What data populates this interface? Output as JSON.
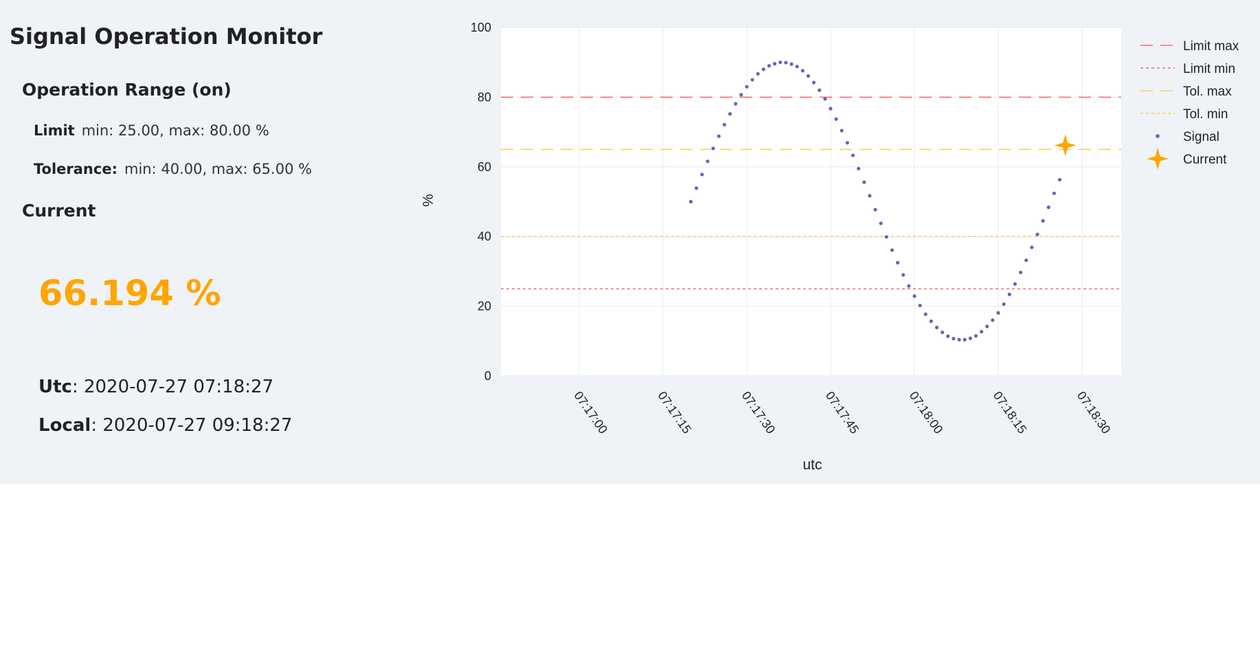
{
  "title": "Signal Operation Monitor",
  "range": {
    "heading": "Operation Range (on)",
    "limit_label": "Limit",
    "limit_text": "min: 25.00, max: 80.00 %",
    "tolerance_label": "Tolerance:",
    "tolerance_text": "min: 40.00, max: 65.00 %"
  },
  "current": {
    "heading": "Current",
    "value": "66.194 %",
    "utc_label": "Utc",
    "utc_value": ": 2020-07-27 07:18:27",
    "local_label": "Local",
    "local_value": ": 2020-07-27 09:18:27"
  },
  "colors": {
    "panel_bg": "#eff2f6",
    "current": "#ffa500",
    "signal": "#6a63b0",
    "limit": "#ff6b6b",
    "tolerance": "#ffcb5c"
  },
  "chart_data": {
    "type": "scatter",
    "xlabel": "utc",
    "ylabel": "%",
    "ylim": [
      0,
      100
    ],
    "yticks": [
      "0",
      "20",
      "40",
      "60",
      "80",
      "100"
    ],
    "xticks": [
      "07:17:00",
      "07:17:15",
      "07:17:30",
      "07:17:45",
      "07:18:00",
      "07:18:15",
      "07:18:30"
    ],
    "xlim": [
      "07:16:46",
      "07:18:37"
    ],
    "grid": true,
    "legend_position": "right",
    "hlines": [
      {
        "name": "Limit max",
        "value": 80,
        "style": "dash",
        "color": "#ff6b6b"
      },
      {
        "name": "Limit min",
        "value": 25,
        "style": "dot",
        "color": "#ff6b6b"
      },
      {
        "name": "Tol. max",
        "value": 65,
        "style": "dash",
        "color": "#ffcb5c"
      },
      {
        "name": "Tol. min",
        "value": 40,
        "style": "dot",
        "color": "#ffcb5c"
      }
    ],
    "series": [
      {
        "name": "Signal",
        "x": [
          "07:17:20",
          "07:17:21",
          "07:17:22",
          "07:17:23",
          "07:17:24",
          "07:17:25",
          "07:17:26",
          "07:17:27",
          "07:17:28",
          "07:17:29",
          "07:17:30",
          "07:17:31",
          "07:17:32",
          "07:17:33",
          "07:17:34",
          "07:17:35",
          "07:17:36",
          "07:17:37",
          "07:17:38",
          "07:17:39",
          "07:17:40",
          "07:17:41",
          "07:17:42",
          "07:17:43",
          "07:17:44",
          "07:17:45",
          "07:17:46",
          "07:17:47",
          "07:17:48",
          "07:17:49",
          "07:17:50",
          "07:17:51",
          "07:17:52",
          "07:17:53",
          "07:17:54",
          "07:17:55",
          "07:17:56",
          "07:17:57",
          "07:17:58",
          "07:17:59",
          "07:18:00",
          "07:18:01",
          "07:18:02",
          "07:18:03",
          "07:18:04",
          "07:18:05",
          "07:18:06",
          "07:18:07",
          "07:18:08",
          "07:18:09",
          "07:18:10",
          "07:18:11",
          "07:18:12",
          "07:18:13",
          "07:18:14",
          "07:18:15",
          "07:18:16",
          "07:18:17",
          "07:18:18",
          "07:18:19",
          "07:18:20",
          "07:18:21",
          "07:18:22",
          "07:18:23",
          "07:18:24",
          "07:18:25",
          "07:18:26"
        ],
        "y": [
          50.0,
          53.9,
          57.8,
          61.6,
          65.3,
          68.8,
          72.1,
          75.2,
          78.1,
          80.7,
          83.0,
          85.0,
          86.7,
          88.0,
          89.0,
          89.6,
          90.0,
          89.9,
          89.5,
          88.8,
          87.6,
          86.1,
          84.2,
          82.0,
          79.5,
          76.7,
          73.7,
          70.4,
          66.9,
          63.3,
          59.5,
          55.6,
          51.7,
          47.7,
          43.8,
          39.9,
          36.1,
          32.5,
          29.0,
          25.8,
          22.9,
          20.2,
          17.7,
          15.7,
          13.9,
          12.5,
          11.4,
          10.7,
          10.4,
          10.4,
          10.8,
          11.5,
          12.7,
          14.2,
          16.0,
          18.1,
          20.6,
          23.4,
          26.4,
          29.7,
          33.2,
          36.9,
          40.6,
          44.5,
          48.4,
          52.4,
          56.3
        ],
        "marker": "dot",
        "color": "#6a63b0"
      },
      {
        "name": "Current",
        "x": [
          "07:18:27"
        ],
        "y": [
          66.194
        ],
        "marker": "star",
        "color": "#ffa500"
      }
    ]
  }
}
